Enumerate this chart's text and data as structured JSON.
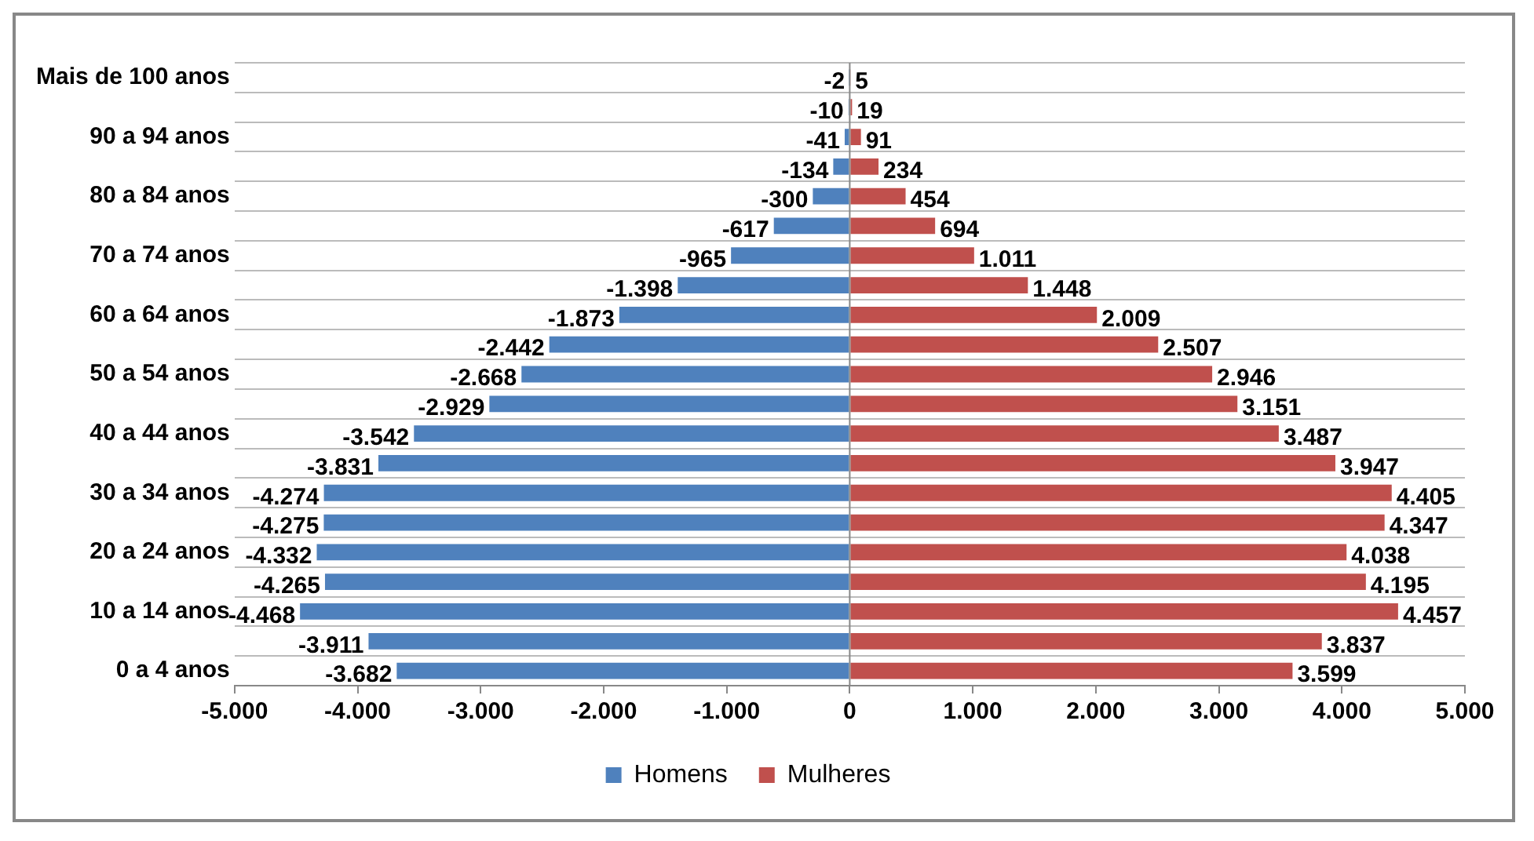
{
  "chart_data": {
    "type": "bar",
    "orientation": "horizontal",
    "stacked": true,
    "grid": "y",
    "legend": "bottom",
    "categories": [
      "Mais de 100 anos",
      null,
      "90 a 94 anos",
      null,
      "80 a 84 anos",
      null,
      "70 a 74 anos",
      null,
      "60 a 64 anos",
      null,
      "50 a 54 anos",
      null,
      "40 a 44 anos",
      null,
      "30 a 34 anos",
      null,
      "20 a 24 anos",
      null,
      "10 a 14 anos",
      null,
      "0 a 4 anos"
    ],
    "xlim": [
      -5000,
      5000
    ],
    "xticks": [
      {
        "value": -5000,
        "label": "-5.000"
      },
      {
        "value": -4000,
        "label": "-4.000"
      },
      {
        "value": -3000,
        "label": "-3.000"
      },
      {
        "value": -2000,
        "label": "-2.000"
      },
      {
        "value": -1000,
        "label": "-1.000"
      },
      0,
      {
        "value": 1000,
        "label": "1.000"
      },
      {
        "value": 2000,
        "label": "2.000"
      },
      {
        "value": 3000,
        "label": "3.000"
      },
      {
        "value": 4000,
        "label": "4.000"
      },
      {
        "value": 5000,
        "label": "5.000"
      }
    ],
    "series": [
      {
        "name": "Homens",
        "color": "#4f81bd",
        "values": [
          -2,
          -10,
          -41,
          -134,
          -300,
          -617,
          -965,
          -1398,
          -1873,
          -2442,
          -2668,
          -2929,
          -3542,
          -3831,
          -4274,
          -4275,
          -4332,
          -4265,
          -4468,
          -3911,
          -3682
        ],
        "value_labels": [
          "-2",
          "-10",
          "-41",
          "-134",
          "-300",
          "-617",
          "-965",
          "-1.398",
          "-1.873",
          "-2.442",
          "-2.668",
          "-2.929",
          "-3.542",
          "-3.831",
          "-4.274",
          "-4.275",
          "-4.332",
          "-4.265",
          "-4.468",
          "-3.911",
          "-3.682"
        ]
      },
      {
        "name": "Mulheres",
        "color": "#c0504d",
        "values": [
          5,
          19,
          91,
          234,
          454,
          694,
          1011,
          1448,
          2009,
          2507,
          2946,
          3151,
          3487,
          3947,
          4405,
          4347,
          4038,
          4195,
          4457,
          3837,
          3599
        ],
        "value_labels": [
          "5",
          "19",
          "91",
          "234",
          "454",
          "694",
          "1.011",
          "1.448",
          "2.009",
          "2.507",
          "2.946",
          "3.151",
          "3.487",
          "3.947",
          "4.405",
          "4.347",
          "4.038",
          "4.195",
          "4.457",
          "3.837",
          "3.599"
        ]
      }
    ]
  }
}
